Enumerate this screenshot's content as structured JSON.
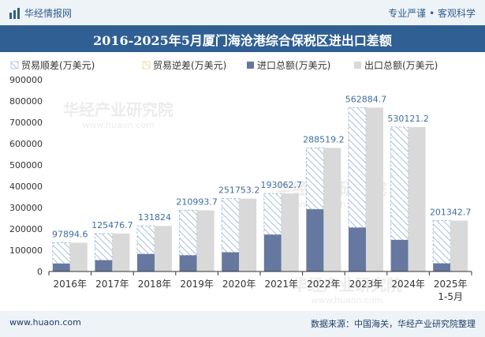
{
  "header": {
    "brand": "华经情报网",
    "tagline": "专业严谨 • 客观科学"
  },
  "footer": {
    "website": "www.huaon.com",
    "source": "数据来源：中国海关，华经产业研究院整理"
  },
  "watermark": {
    "text": "华经产业研究院",
    "url": "www.huaon.com"
  },
  "colors": {
    "import": "#66789f",
    "export": "#d9d9d9",
    "hatch": "#a9bfd8",
    "header_bg": "#2f5f93",
    "label": "#3f6e9f"
  },
  "chart_data": {
    "type": "bar",
    "title": "2016-2025年5月厦门海沧港综合保税区进出口差额",
    "categories": [
      "2016年",
      "2017年",
      "2018年",
      "2019年",
      "2020年",
      "2021年",
      "2022年",
      "2023年",
      "2024年",
      "2025年"
    ],
    "category_sublabels": [
      "",
      "",
      "",
      "",
      "",
      "",
      "",
      "",
      "",
      "1-5月"
    ],
    "legend": [
      "贸易顺差(万美元)",
      "贸易逆差(万美元)",
      "进口总额(万美元)",
      "出口总额(万美元)"
    ],
    "series": [
      {
        "name": "贸易顺差(万美元)",
        "values": [
          97894.6,
          125476.7,
          131824,
          210993.7,
          251753.2,
          193062.7,
          288519.2,
          562884.7,
          530121.2,
          201342.7
        ]
      },
      {
        "name": "贸易逆差(万美元)",
        "values": [
          0,
          0,
          0,
          0,
          0,
          0,
          0,
          0,
          0,
          0
        ]
      },
      {
        "name": "进口总额(万美元)",
        "values": [
          37000,
          53000,
          82000,
          76000,
          90000,
          173000,
          292000,
          206000,
          148000,
          38000
        ]
      },
      {
        "name": "出口总额(万美元)",
        "values": [
          135000,
          178000,
          214000,
          287000,
          342000,
          366000,
          580000,
          769000,
          678000,
          239000
        ]
      }
    ],
    "data_labels": [
      "97894.6",
      "125476.7",
      "131824",
      "210993.7",
      "251753.2",
      "193062.7",
      "288519.2",
      "562884.7",
      "530121.2",
      "201342.7"
    ],
    "y_ticks": [
      0,
      100000,
      200000,
      300000,
      400000,
      500000,
      600000,
      700000,
      800000,
      900000
    ],
    "ylim": [
      0,
      900000
    ],
    "xlabel": "",
    "ylabel": "",
    "legend_position": "top-left",
    "grid": false
  }
}
